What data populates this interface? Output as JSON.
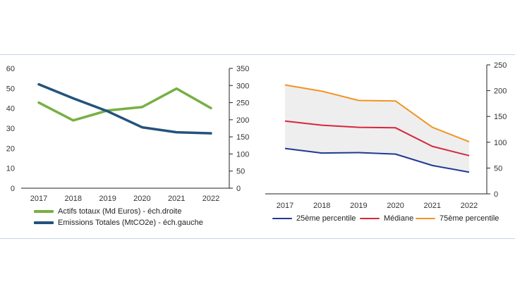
{
  "colors": {
    "green": "#77b043",
    "navy": "#23527c",
    "blue": "#1f3a93",
    "red": "#d7263d",
    "orange": "#f39322",
    "band": "#eeeeee",
    "axis": "#222222"
  },
  "chart_data": [
    {
      "type": "line",
      "categories": [
        "2017",
        "2018",
        "2019",
        "2020",
        "2021",
        "2022"
      ],
      "series": [
        {
          "name": "Actifs totaux (Md Euros) - éch.droite",
          "axis": "right",
          "values": [
            250,
            198,
            227,
            237,
            291,
            234
          ]
        },
        {
          "name": "Emissions Totales (MtCO2e) - éch.gauche",
          "axis": "left",
          "values": [
            52,
            45,
            38.5,
            30.5,
            28,
            27.5
          ]
        }
      ],
      "y_left": {
        "range": [
          0,
          60
        ],
        "ticks": [
          "0",
          "10",
          "20",
          "30",
          "40",
          "50",
          "60"
        ]
      },
      "y_right": {
        "range": [
          0,
          350
        ],
        "ticks": [
          "0",
          "50",
          "100",
          "150",
          "200",
          "250",
          "300",
          "350"
        ]
      }
    },
    {
      "type": "line",
      "categories": [
        "2017",
        "2018",
        "2019",
        "2020",
        "2021",
        "2022"
      ],
      "series": [
        {
          "name": "25ème percentile",
          "values": [
            88,
            79,
            80,
            77,
            55,
            42
          ]
        },
        {
          "name": "Médiane",
          "values": [
            141,
            133,
            129,
            128,
            92,
            74
          ]
        },
        {
          "name": "75ème percentile",
          "values": [
            211,
            199,
            181,
            180,
            129,
            101
          ]
        }
      ],
      "shaded_band": "25ème percentile - 75ème percentile",
      "y_right": {
        "range": [
          0,
          250
        ],
        "ticks": [
          "0",
          "50",
          "100",
          "150",
          "200",
          "250"
        ]
      }
    }
  ]
}
